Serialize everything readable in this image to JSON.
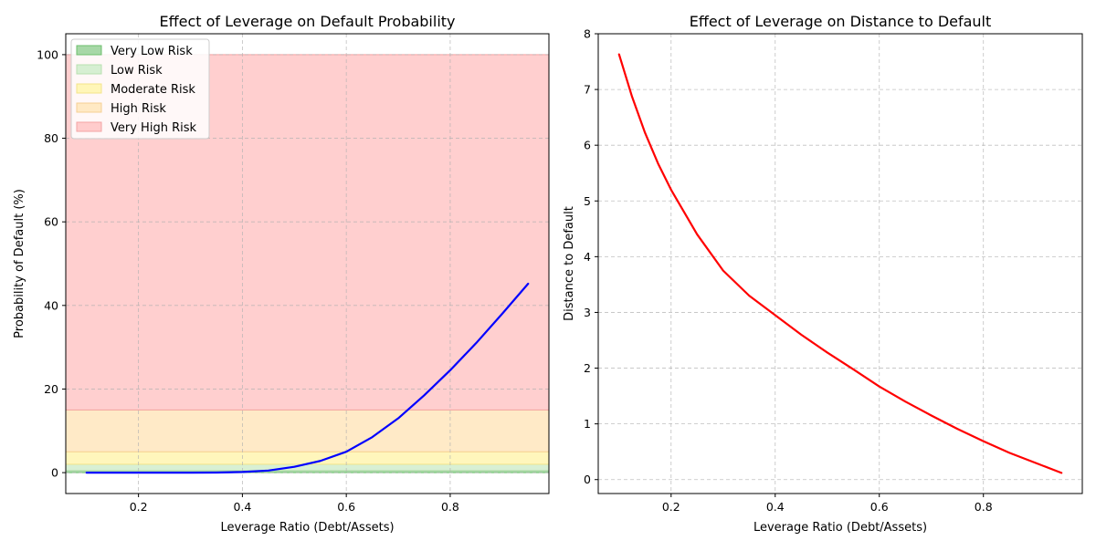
{
  "chart_data": [
    {
      "type": "line",
      "title": "Effect of Leverage on Default Probability",
      "xlabel": "Leverage Ratio (Debt/Assets)",
      "ylabel": "Probability of Default (%)",
      "xlim": [
        0.06,
        0.99
      ],
      "ylim": [
        -5,
        105
      ],
      "xticks": [
        0.2,
        0.4,
        0.6,
        0.8
      ],
      "yticks": [
        0,
        20,
        40,
        60,
        80,
        100
      ],
      "x_tick_labels": [
        "0.2",
        "0.4",
        "0.6",
        "0.8"
      ],
      "y_tick_labels": [
        "0",
        "20",
        "40",
        "60",
        "80",
        "100"
      ],
      "grid": true,
      "legend_position": "top-left",
      "risk_bands": [
        {
          "name": "Very Low Risk",
          "from": 0,
          "to": 0.5,
          "fill": "#a7d8a7",
          "edge": "#6cbf6c"
        },
        {
          "name": "Low Risk",
          "from": 0.5,
          "to": 2,
          "fill": "#d6efd2",
          "edge": "#b8e0b0"
        },
        {
          "name": "Moderate Risk",
          "from": 2,
          "to": 5,
          "fill": "#fff6b8",
          "edge": "#f3e48a"
        },
        {
          "name": "High Risk",
          "from": 5,
          "to": 15,
          "fill": "#ffe9c4",
          "edge": "#f6cf94"
        },
        {
          "name": "Very High Risk",
          "from": 15,
          "to": 100,
          "fill": "#ffcccc",
          "edge": "#f3a3a3"
        }
      ],
      "series": [
        {
          "color": "#0000ff",
          "x": [
            0.1,
            0.15,
            0.2,
            0.25,
            0.3,
            0.35,
            0.4,
            0.45,
            0.5,
            0.55,
            0.6,
            0.65,
            0.7,
            0.75,
            0.8,
            0.85,
            0.9,
            0.95
          ],
          "y": [
            0.0,
            0.0,
            0.0,
            0.0,
            0.0,
            0.02,
            0.15,
            0.5,
            1.4,
            2.8,
            5.0,
            8.5,
            13.0,
            18.5,
            24.5,
            31.0,
            38.0,
            45.2
          ]
        }
      ]
    },
    {
      "type": "line",
      "title": "Effect of Leverage on Distance to Default",
      "xlabel": "Leverage Ratio (Debt/Assets)",
      "ylabel": "Distance to Default",
      "xlim": [
        0.06,
        0.99
      ],
      "ylim": [
        -0.25,
        8
      ],
      "xticks": [
        0.2,
        0.4,
        0.6,
        0.8
      ],
      "yticks": [
        0,
        1,
        2,
        3,
        4,
        5,
        6,
        7,
        8
      ],
      "x_tick_labels": [
        "0.2",
        "0.4",
        "0.6",
        "0.8"
      ],
      "y_tick_labels": [
        "0",
        "1",
        "2",
        "3",
        "4",
        "5",
        "6",
        "7",
        "8"
      ],
      "grid": true,
      "series": [
        {
          "color": "#ff0000",
          "x": [
            0.1,
            0.125,
            0.15,
            0.175,
            0.2,
            0.25,
            0.3,
            0.35,
            0.4,
            0.45,
            0.5,
            0.55,
            0.6,
            0.65,
            0.7,
            0.75,
            0.8,
            0.85,
            0.9,
            0.95
          ],
          "y": [
            7.63,
            6.87,
            6.22,
            5.67,
            5.2,
            4.4,
            3.75,
            3.3,
            2.95,
            2.6,
            2.28,
            1.98,
            1.67,
            1.4,
            1.15,
            0.91,
            0.69,
            0.48,
            0.3,
            0.12
          ]
        }
      ]
    }
  ]
}
